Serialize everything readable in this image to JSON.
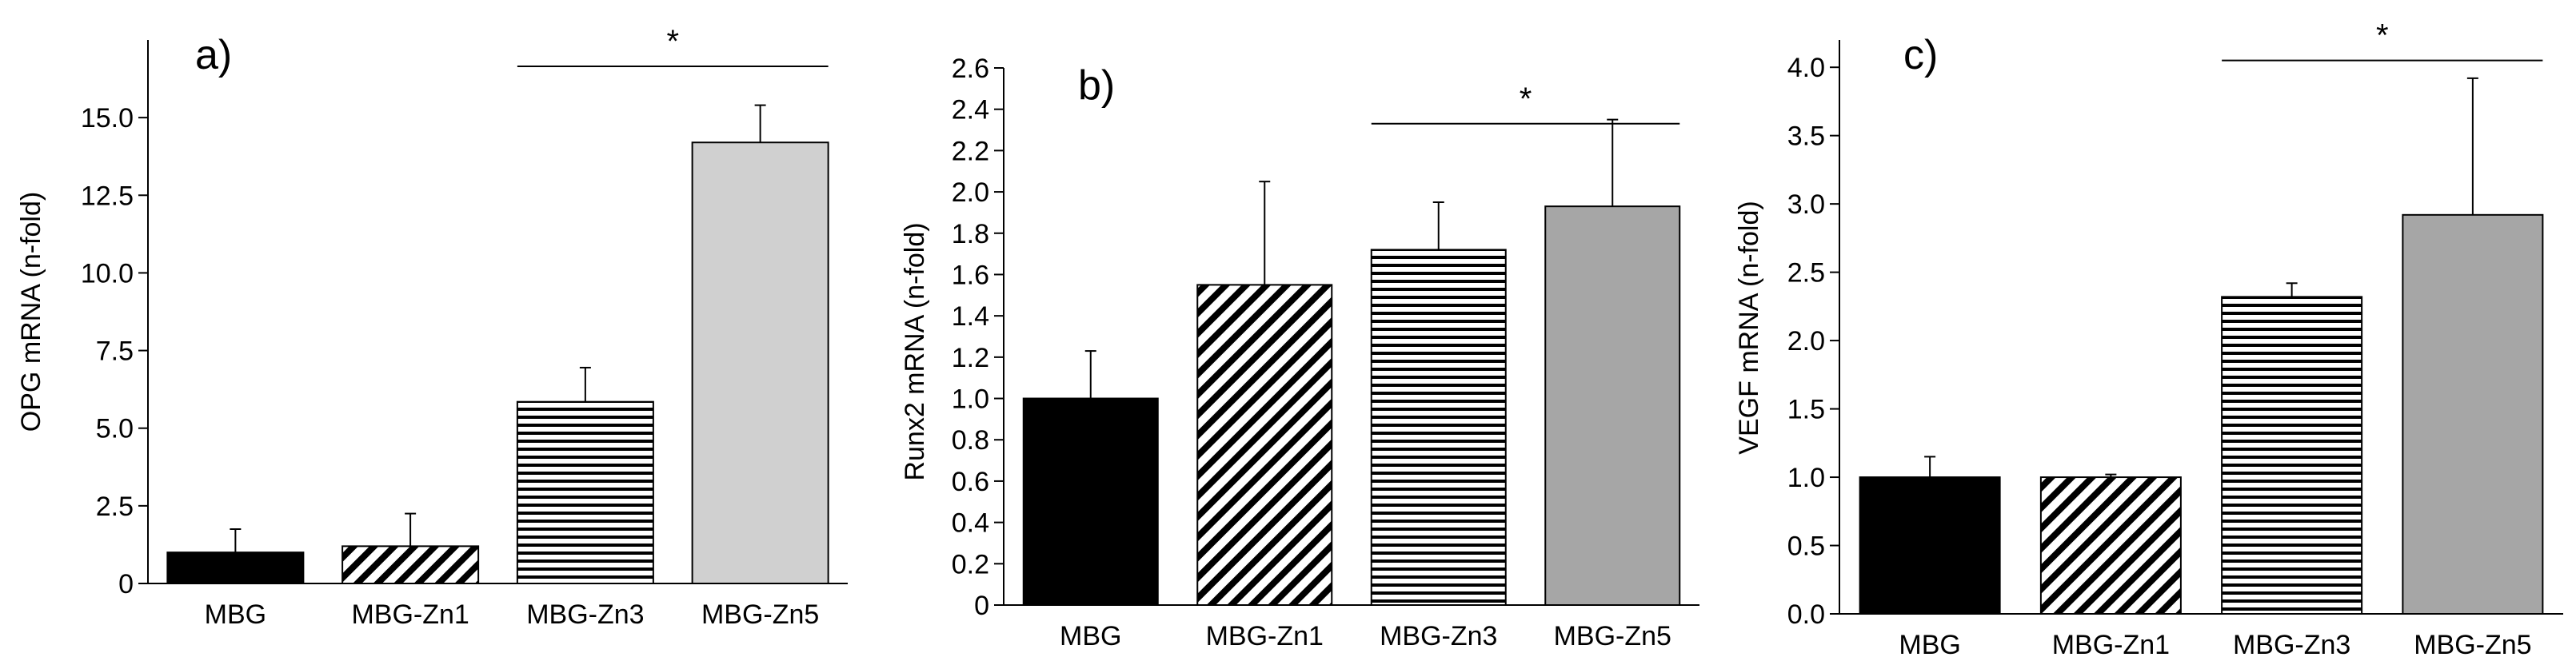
{
  "chart_data": [
    {
      "type": "bar",
      "panel_label": "a)",
      "ylabel": "OPG mRNA (n-fold)",
      "xlabel": "",
      "categories": [
        "MBG",
        "MBG-Zn1",
        "MBG-Zn3",
        "MBG-Zn5"
      ],
      "values": [
        1.0,
        1.2,
        5.85,
        14.2
      ],
      "errors": [
        0.75,
        1.05,
        1.1,
        1.2
      ],
      "fills": [
        "solid-black",
        "diagonal-hatch",
        "horizontal-lines",
        "solid-lightgray"
      ],
      "ylim": [
        0,
        17.5
      ],
      "ytick_values": [
        0,
        2.5,
        5.0,
        7.5,
        10.0,
        12.5,
        15.0
      ],
      "ytick_labels": [
        "0",
        "2.5",
        "5.0",
        "7.5",
        "10.0",
        "12.5",
        "15.0"
      ],
      "significance": {
        "from": 2,
        "to": 3,
        "y": 16.65,
        "label": "*"
      }
    },
    {
      "type": "bar",
      "panel_label": "b)",
      "ylabel": "Runx2 mRNA (n-fold)",
      "xlabel": "",
      "categories": [
        "MBG",
        "MBG-Zn1",
        "MBG-Zn3",
        "MBG-Zn5"
      ],
      "values": [
        1.0,
        1.55,
        1.72,
        1.93
      ],
      "errors": [
        0.23,
        0.5,
        0.23,
        0.42
      ],
      "fills": [
        "solid-black",
        "diagonal-hatch",
        "horizontal-lines",
        "solid-gray"
      ],
      "ylim": [
        0,
        2.6
      ],
      "ytick_values": [
        0,
        0.2,
        0.4,
        0.6,
        0.8,
        1.0,
        1.2,
        1.4,
        1.6,
        1.8,
        2.0,
        2.2,
        2.4,
        2.6
      ],
      "ytick_labels": [
        "0",
        "0.2",
        "0.4",
        "0.6",
        "0.8",
        "1.0",
        "1.2",
        "1.4",
        "1.6",
        "1.8",
        "2.0",
        "2.2",
        "2.4",
        "2.6"
      ],
      "significance": {
        "from": 2,
        "to": 3,
        "y": 2.33,
        "label": "*"
      }
    },
    {
      "type": "bar",
      "panel_label": "c)",
      "ylabel": "VEGF mRNA (n-fold)",
      "xlabel": "",
      "categories": [
        "MBG",
        "MBG-Zn1",
        "MBG-Zn3",
        "MBG-Zn5"
      ],
      "values": [
        1.0,
        1.0,
        2.32,
        2.92
      ],
      "errors": [
        0.15,
        0.02,
        0.1,
        1.0
      ],
      "fills": [
        "solid-black",
        "diagonal-hatch",
        "horizontal-lines",
        "solid-gray"
      ],
      "ylim": [
        0,
        4.2
      ],
      "ytick_values": [
        0,
        0.5,
        1.0,
        1.5,
        2.0,
        2.5,
        3.0,
        3.5,
        4.0
      ],
      "ytick_labels": [
        "0.0",
        "0.5",
        "1.0",
        "1.5",
        "2.0",
        "2.5",
        "3.0",
        "3.5",
        "4.0"
      ],
      "significance": {
        "from": 2,
        "to": 3,
        "y": 4.05,
        "label": "*"
      }
    }
  ],
  "colors": {
    "solid-black": "#000000",
    "solid-lightgray": "#d0d0d0",
    "solid-gray": "#a6a6a6",
    "hatch-stroke": "#000000",
    "axis": "#000000",
    "background": "#ffffff"
  }
}
